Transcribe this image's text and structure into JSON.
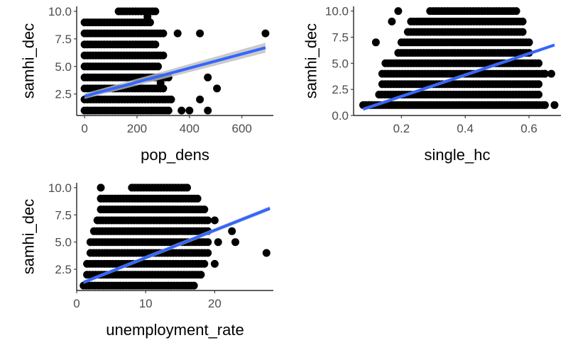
{
  "chart_data": [
    {
      "type": "scatter",
      "id": "pop_dens",
      "xlabel": "pop_dens",
      "ylabel": "samhi_dec",
      "xlim": [
        -30,
        720
      ],
      "ylim": [
        0.55,
        10.45
      ],
      "xticks": [
        0,
        200,
        400,
        600
      ],
      "xtick_labels": [
        "0",
        "200",
        "400",
        "600"
      ],
      "yticks": [
        2.5,
        5.0,
        7.5,
        10.0
      ],
      "ytick_labels": [
        "2.5",
        "5.0",
        "7.5",
        "10.0"
      ],
      "point_color": "#000000",
      "grid": false,
      "legend": "none",
      "point_bands": [
        {
          "y": 10,
          "x0": 130,
          "x1": 270
        },
        {
          "y": 9,
          "x0": 0,
          "x1": 250
        },
        {
          "y": 8,
          "x0": 0,
          "x1": 300
        },
        {
          "y": 7,
          "x0": 0,
          "x1": 270
        },
        {
          "y": 6,
          "x0": 0,
          "x1": 300
        },
        {
          "y": 5,
          "x0": 0,
          "x1": 280
        },
        {
          "y": 4,
          "x0": 0,
          "x1": 320
        },
        {
          "y": 3,
          "x0": 0,
          "x1": 300
        },
        {
          "y": 2,
          "x0": 0,
          "x1": 330
        },
        {
          "y": 1,
          "x0": 0,
          "x1": 320
        }
      ],
      "extra_points": [
        {
          "x": 240,
          "y": 9.5
        },
        {
          "x": 355,
          "y": 8.0
        },
        {
          "x": 440,
          "y": 8.0
        },
        {
          "x": 690,
          "y": 8.0
        },
        {
          "x": 470,
          "y": 4.0
        },
        {
          "x": 505,
          "y": 3.0
        },
        {
          "x": 290,
          "y": 3.5
        },
        {
          "x": 440,
          "y": 2.0
        },
        {
          "x": 370,
          "y": 1.0
        },
        {
          "x": 400,
          "y": 1.0
        },
        {
          "x": 470,
          "y": 1.0
        }
      ],
      "fit": {
        "x": [
          0,
          690
        ],
        "y": [
          2.3,
          6.7
        ],
        "ci_upper": [
          2.55,
          7.15
        ],
        "ci_lower": [
          2.05,
          6.25
        ],
        "color": "#3366FF",
        "ci_color": "#bdbdbd"
      }
    },
    {
      "type": "scatter",
      "id": "single_hc",
      "xlabel": "single_hc",
      "ylabel": "samhi_dec",
      "xlim": [
        0.05,
        0.7
      ],
      "ylim": [
        0.0,
        10.45
      ],
      "xticks": [
        0.2,
        0.4,
        0.6
      ],
      "xtick_labels": [
        "0.2",
        "0.4",
        "0.6"
      ],
      "yticks": [
        0.0,
        2.5,
        5.0,
        7.5,
        10.0
      ],
      "ytick_labels": [
        "0.0",
        "2.5",
        "5.0",
        "7.5",
        "10.0"
      ],
      "point_color": "#000000",
      "grid": false,
      "legend": "none",
      "point_bands": [
        {
          "y": 10,
          "x0": 0.29,
          "x1": 0.56
        },
        {
          "y": 9,
          "x0": 0.23,
          "x1": 0.58
        },
        {
          "y": 8,
          "x0": 0.22,
          "x1": 0.58
        },
        {
          "y": 7,
          "x0": 0.2,
          "x1": 0.6
        },
        {
          "y": 6,
          "x0": 0.19,
          "x1": 0.6
        },
        {
          "y": 5,
          "x0": 0.15,
          "x1": 0.62
        },
        {
          "y": 4,
          "x0": 0.14,
          "x1": 0.65
        },
        {
          "y": 3,
          "x0": 0.14,
          "x1": 0.63
        },
        {
          "y": 2,
          "x0": 0.13,
          "x1": 0.63
        },
        {
          "y": 1,
          "x0": 0.08,
          "x1": 0.65
        }
      ],
      "extra_points": [
        {
          "x": 0.19,
          "y": 10.0
        },
        {
          "x": 0.17,
          "y": 9.0
        },
        {
          "x": 0.12,
          "y": 7.0
        },
        {
          "x": 0.63,
          "y": 5.0
        },
        {
          "x": 0.67,
          "y": 4.0
        },
        {
          "x": 0.65,
          "y": 4.0
        },
        {
          "x": 0.1,
          "y": 1.0
        },
        {
          "x": 0.68,
          "y": 1.0
        }
      ],
      "fit": {
        "x": [
          0.08,
          0.68
        ],
        "y": [
          0.6,
          6.75
        ],
        "ci_upper": [
          0.75,
          6.9
        ],
        "ci_lower": [
          0.45,
          6.6
        ],
        "color": "#3366FF",
        "ci_color": "#bdbdbd"
      }
    },
    {
      "type": "scatter",
      "id": "unemployment_rate",
      "xlabel": "unemployment_rate",
      "ylabel": "samhi_dec",
      "xlim": [
        0,
        28.5
      ],
      "ylim": [
        0.55,
        10.45
      ],
      "xticks": [
        0,
        10,
        20
      ],
      "xtick_labels": [
        "0",
        "10",
        "20"
      ],
      "yticks": [
        2.5,
        5.0,
        7.5,
        10.0
      ],
      "ytick_labels": [
        "2.5",
        "5.0",
        "7.5",
        "10.0"
      ],
      "point_color": "#000000",
      "grid": false,
      "legend": "none",
      "point_bands": [
        {
          "y": 10,
          "x0": 8,
          "x1": 16
        },
        {
          "y": 9,
          "x0": 3.5,
          "x1": 17.5
        },
        {
          "y": 8,
          "x0": 3.5,
          "x1": 18.5
        },
        {
          "y": 7,
          "x0": 3,
          "x1": 19
        },
        {
          "y": 6,
          "x0": 2.5,
          "x1": 19
        },
        {
          "y": 5,
          "x0": 2,
          "x1": 19
        },
        {
          "y": 4,
          "x0": 2,
          "x1": 19
        },
        {
          "y": 3,
          "x0": 1.5,
          "x1": 18.5
        },
        {
          "y": 2,
          "x0": 1.5,
          "x1": 18
        },
        {
          "y": 1,
          "x0": 1,
          "x1": 17
        }
      ],
      "extra_points": [
        {
          "x": 3.5,
          "y": 10.0
        },
        {
          "x": 20.0,
          "y": 7.0
        },
        {
          "x": 22.5,
          "y": 6.0
        },
        {
          "x": 20.5,
          "y": 5.0
        },
        {
          "x": 23.0,
          "y": 5.0
        },
        {
          "x": 27.5,
          "y": 4.0
        },
        {
          "x": 20.0,
          "y": 3.0
        }
      ],
      "fit": {
        "x": [
          1,
          28
        ],
        "y": [
          1.3,
          8.1
        ],
        "ci_upper": [
          1.45,
          8.3
        ],
        "ci_lower": [
          1.15,
          7.9
        ],
        "color": "#3366FF",
        "ci_color": "#bdbdbd"
      }
    }
  ]
}
